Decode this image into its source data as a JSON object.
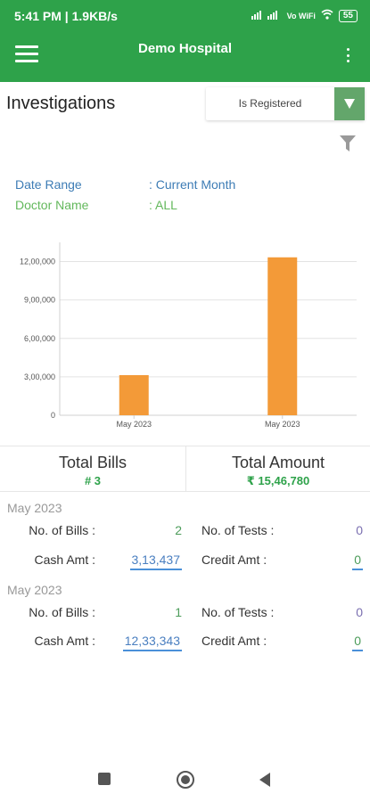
{
  "status_bar": {
    "time_speed": "5:41 PM | 1.9KB/s",
    "network": "Vo WiFi",
    "battery": "55"
  },
  "app_bar": {
    "title": "Demo Hospital"
  },
  "page": {
    "title": "Investigations",
    "dropdown_value": "Is Registered"
  },
  "filters": {
    "date_range_label": "Date Range",
    "date_range_value": ": Current Month",
    "doctor_label": "Doctor Name",
    "doctor_value": ": ALL"
  },
  "chart_data": {
    "type": "bar",
    "categories": [
      "May 2023",
      "May 2023"
    ],
    "values": [
      313437,
      1233343
    ],
    "ylim": [
      0,
      1350000
    ],
    "yticks": [
      0,
      300000,
      600000,
      900000,
      1200000
    ],
    "ytick_labels": [
      "0",
      "3,00,000",
      "6,00,000",
      "9,00,000",
      "12,00,000"
    ],
    "bar_color": "#f39a38",
    "grid": true
  },
  "totals": {
    "bills_label": "Total Bills",
    "bills_value": "# 3",
    "amount_label": "Total Amount",
    "amount_value": "₹ 15,46,780"
  },
  "groups": [
    {
      "date": "May 2023",
      "bills_label": "No. of Bills :",
      "bills_value": "2",
      "tests_label": "No. of Tests :",
      "tests_value": "0",
      "cash_label": "Cash Amt :",
      "cash_value": "3,13,437",
      "credit_label": "Credit Amt :",
      "credit_value": "0"
    },
    {
      "date": "May 2023",
      "bills_label": "No. of Bills :",
      "bills_value": "1",
      "tests_label": "No. of Tests :",
      "tests_value": "0",
      "cash_label": "Cash Amt :",
      "cash_value": "12,33,343",
      "credit_label": "Credit Amt :",
      "credit_value": "0"
    }
  ],
  "colors": {
    "primary": "#2ea24a",
    "bar": "#f39a38",
    "link": "#4a7fc0"
  }
}
